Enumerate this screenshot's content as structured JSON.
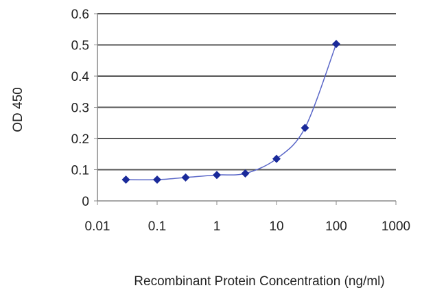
{
  "chart_data": {
    "type": "line",
    "title": "",
    "xlabel": "Recombinant Protein Concentration (ng/ml)",
    "ylabel": "OD 450",
    "x_scale": "log",
    "xlim": [
      0.01,
      1000
    ],
    "ylim": [
      0,
      0.6
    ],
    "x_ticks": [
      "0.01",
      "0.1",
      "1",
      "10",
      "100",
      "1000"
    ],
    "y_ticks": [
      "0",
      "0.1",
      "0.2",
      "0.3",
      "0.4",
      "0.5",
      "0.6"
    ],
    "grid": "horizontal",
    "legend": "none",
    "series": [
      {
        "color": "#1a2a9a",
        "marker": "diamond",
        "x": [
          0.03,
          0.1,
          0.3,
          1,
          3,
          10,
          30,
          100
        ],
        "y": [
          0.068,
          0.068,
          0.075,
          0.083,
          0.088,
          0.135,
          0.234,
          0.503
        ]
      }
    ]
  }
}
